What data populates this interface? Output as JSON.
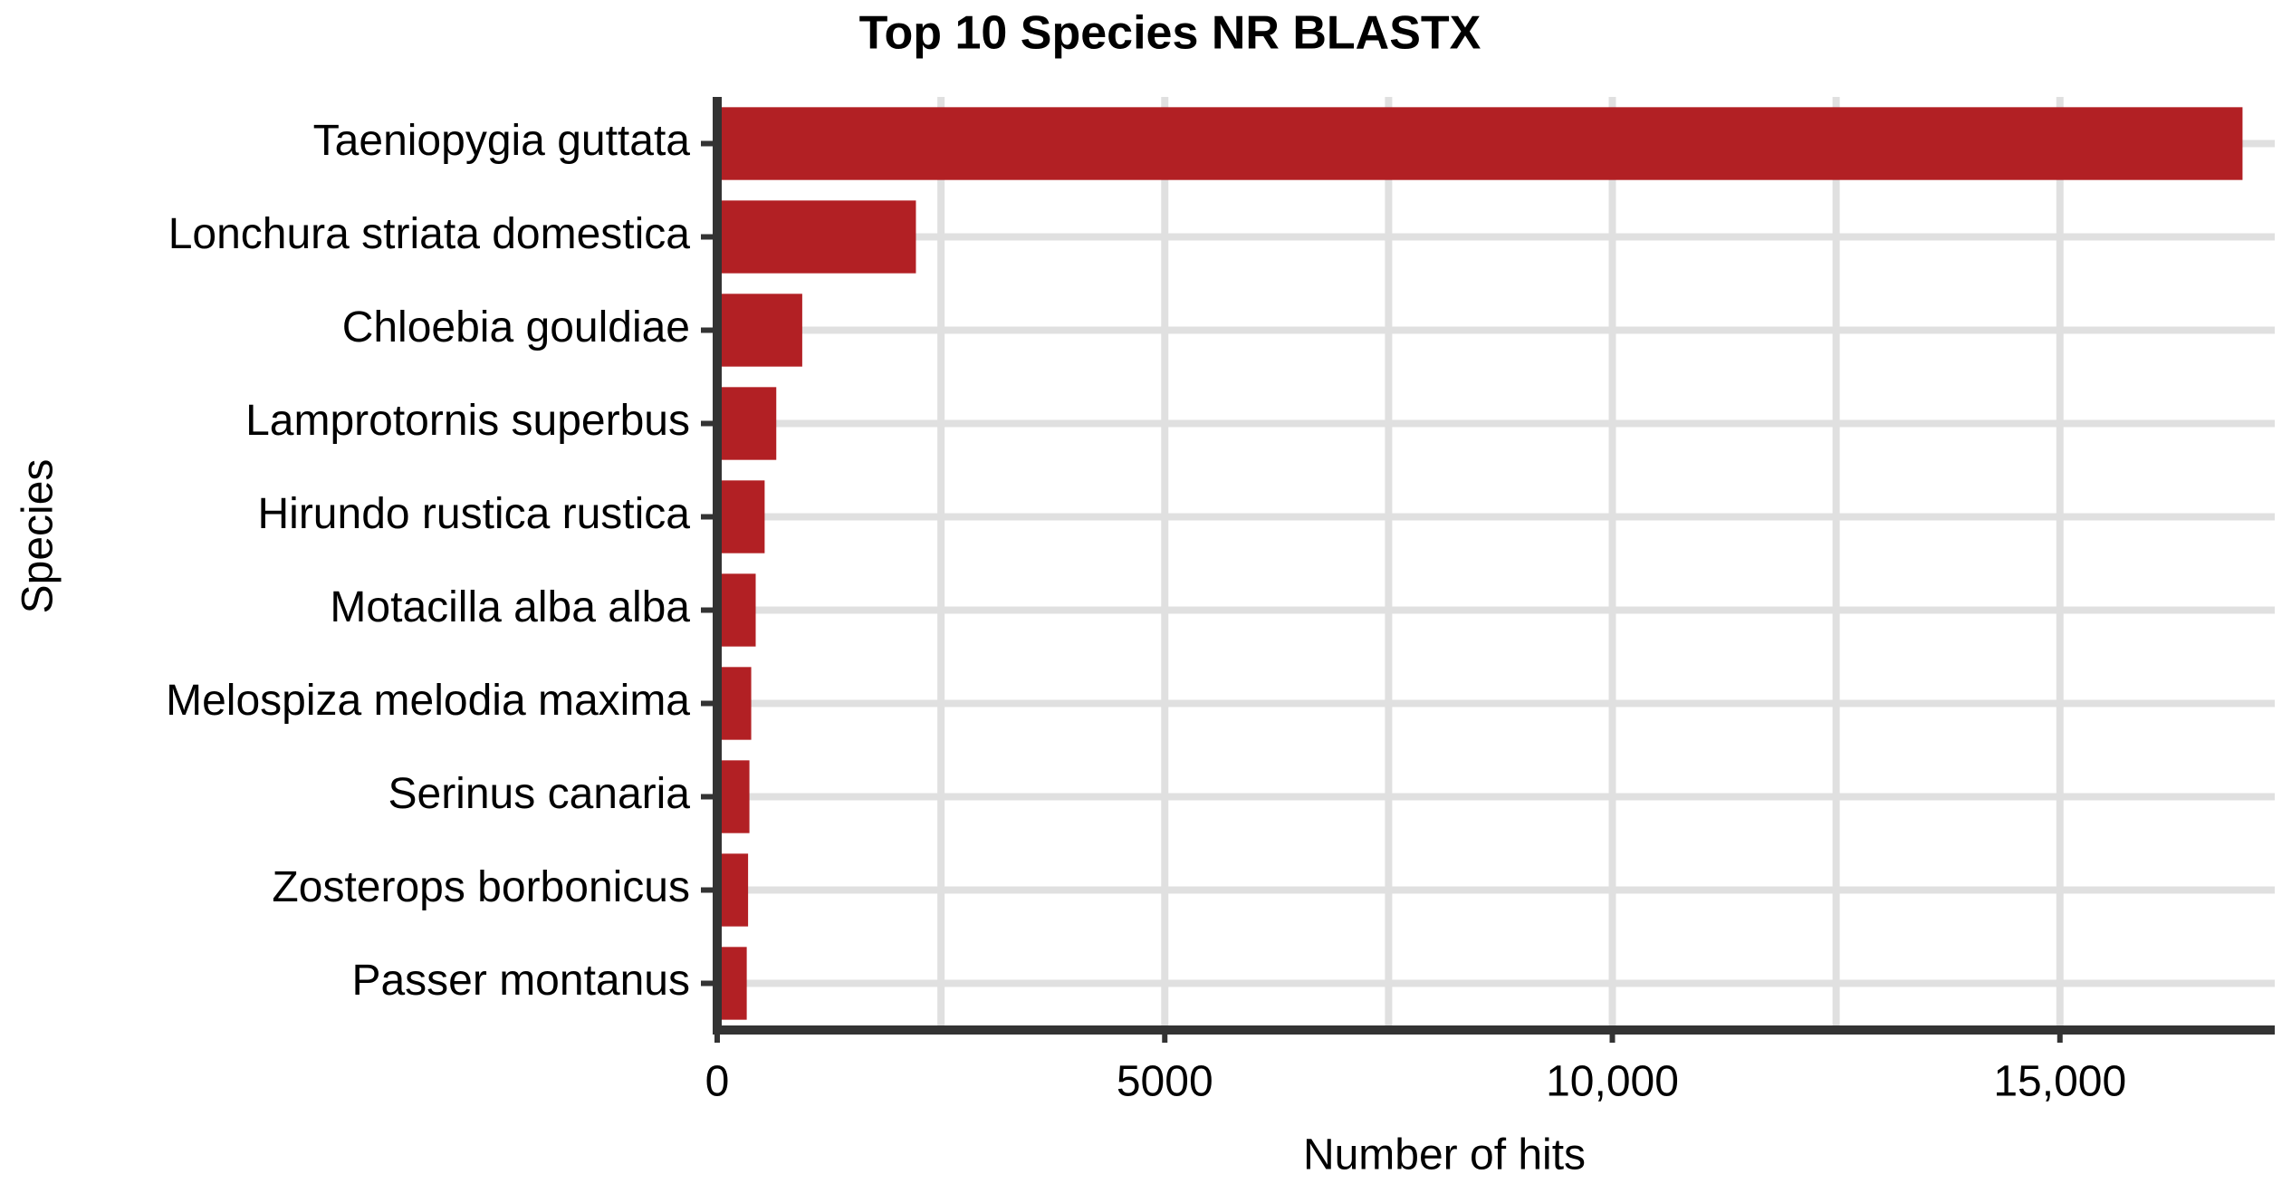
{
  "chart_data": {
    "type": "bar",
    "orientation": "horizontal",
    "title": "Top 10 Species NR BLASTX",
    "x_label": "Number of hits",
    "y_label": "Species",
    "categories": [
      "Taeniopygia guttata",
      "Lonchura striata domestica",
      "Chloebia gouldiae",
      "Lamprotornis superbus",
      "Hirundo rustica rustica",
      "Motacilla alba alba",
      "Melospiza melodia maxima",
      "Serinus canaria",
      "Zosterops borbonicus",
      "Passer montanus"
    ],
    "values": [
      17040,
      2220,
      950,
      660,
      530,
      430,
      380,
      360,
      345,
      330
    ],
    "color": "#b22024",
    "xlim": [
      0,
      17400
    ],
    "xticks": [
      0,
      5000,
      {
        "value": 10000,
        "label": "10,000"
      },
      {
        "value": 15000,
        "label": "15,000"
      }
    ],
    "minor_xgrid": [
      2500,
      7500,
      12500
    ],
    "grid": true
  }
}
